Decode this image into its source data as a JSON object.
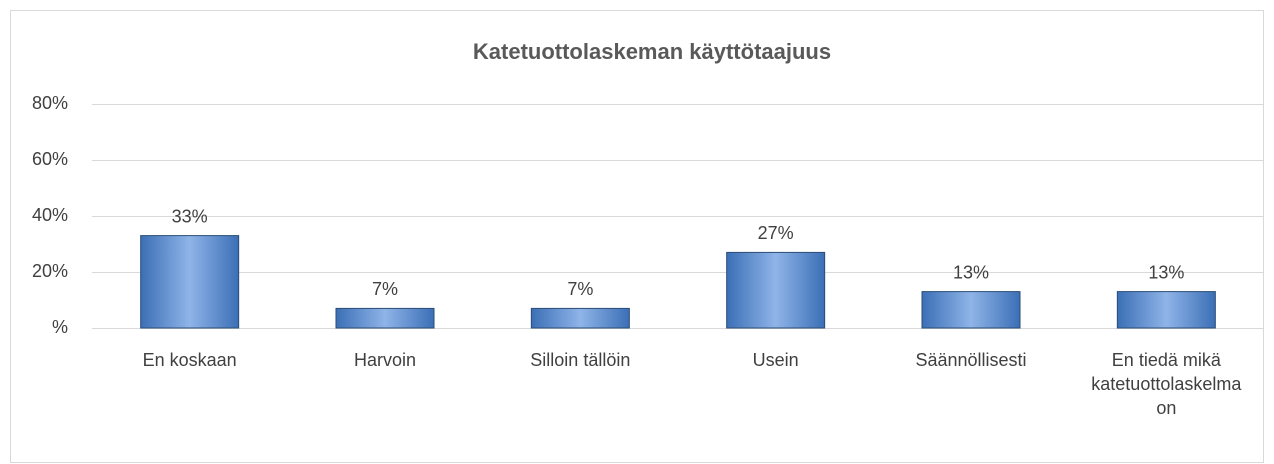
{
  "chart_data": {
    "type": "bar",
    "title": "Katetuottolaskeman käyttötaajuus",
    "categories": [
      "En koskaan",
      "Harvoin",
      "Silloin tällöin",
      "Usein",
      "Säännöllisesti",
      "En tiedä mikä katetuottolaskelma on"
    ],
    "values": [
      33,
      7,
      7,
      27,
      13,
      13
    ],
    "value_labels": [
      "33%",
      "7%",
      "7%",
      "27%",
      "13%",
      "13%"
    ],
    "color": "#4f81bd",
    "ylim": [
      0,
      80
    ],
    "yticks": [
      {
        "value": 0,
        "label": "%"
      },
      {
        "value": 20,
        "label": "20%"
      },
      {
        "value": 40,
        "label": "40%"
      },
      {
        "value": 60,
        "label": "60%"
      },
      {
        "value": 80,
        "label": "80%"
      }
    ],
    "grid": true
  }
}
